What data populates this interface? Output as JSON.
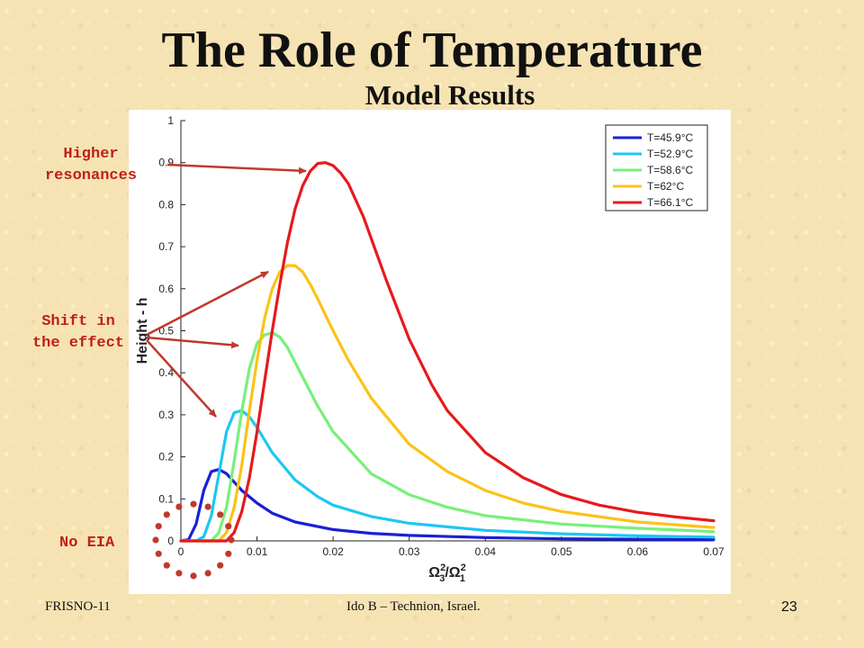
{
  "slide": {
    "title": "The Role of Temperature",
    "subtitle": "Model Results",
    "annotations": {
      "higher_line1": "Higher",
      "higher_line2": "resonances",
      "shift_line1": "Shift in",
      "shift_line2": "the effect",
      "no_eia": "No EIA"
    },
    "footer_left": "FRISNO-11",
    "footer_center": "Ido B – Technion, Israel.",
    "page_number": "23",
    "arrow_color": "#c0392b"
  },
  "chart_data": {
    "type": "line",
    "ylabel": "Height - h",
    "xlabel_base": "Ω",
    "xlim": [
      0,
      0.07
    ],
    "ylim": [
      0,
      1
    ],
    "xticks": [
      0,
      0.01,
      0.02,
      0.03,
      0.04,
      0.05,
      0.06,
      0.07
    ],
    "xtick_labels": [
      "0",
      "0.01",
      "0.02",
      "0.03",
      "0.04",
      "0.05",
      "0.06",
      "0.07"
    ],
    "yticks": [
      0,
      0.1,
      0.2,
      0.3,
      0.4,
      0.5,
      0.6,
      0.7,
      0.8,
      0.9,
      1
    ],
    "ytick_labels": [
      "0",
      "0.1",
      "0.2",
      "0.3",
      "0.4",
      "0.5",
      "0.6",
      "0.7",
      "0.8",
      "0.9",
      "1"
    ],
    "grid": false,
    "legend_position": "top-right",
    "series": [
      {
        "name": "T=45.9°C",
        "color": "#1a1fd6",
        "x": [
          0,
          0.001,
          0.002,
          0.003,
          0.004,
          0.005,
          0.006,
          0.007,
          0.008,
          0.01,
          0.012,
          0.015,
          0.02,
          0.025,
          0.03,
          0.04,
          0.05,
          0.06,
          0.07
        ],
        "y": [
          0,
          0.003,
          0.04,
          0.12,
          0.165,
          0.17,
          0.16,
          0.14,
          0.12,
          0.09,
          0.066,
          0.045,
          0.027,
          0.018,
          0.013,
          0.008,
          0.005,
          0.004,
          0.003
        ]
      },
      {
        "name": "T=52.9°C",
        "color": "#1ec7f0",
        "x": [
          0,
          0.002,
          0.003,
          0.004,
          0.005,
          0.006,
          0.007,
          0.008,
          0.009,
          0.01,
          0.012,
          0.015,
          0.018,
          0.02,
          0.025,
          0.03,
          0.04,
          0.05,
          0.06,
          0.07
        ],
        "y": [
          0,
          0.0,
          0.01,
          0.06,
          0.16,
          0.26,
          0.305,
          0.31,
          0.295,
          0.27,
          0.21,
          0.145,
          0.105,
          0.085,
          0.058,
          0.042,
          0.025,
          0.017,
          0.012,
          0.009
        ]
      },
      {
        "name": "T=58.6°C",
        "color": "#77f07a",
        "x": [
          0,
          0.004,
          0.005,
          0.006,
          0.007,
          0.008,
          0.009,
          0.01,
          0.011,
          0.012,
          0.013,
          0.014,
          0.016,
          0.018,
          0.02,
          0.025,
          0.03,
          0.035,
          0.04,
          0.05,
          0.06,
          0.07
        ],
        "y": [
          0,
          0.0,
          0.02,
          0.08,
          0.19,
          0.31,
          0.41,
          0.47,
          0.49,
          0.495,
          0.485,
          0.46,
          0.39,
          0.32,
          0.26,
          0.16,
          0.11,
          0.08,
          0.06,
          0.04,
          0.03,
          0.022
        ]
      },
      {
        "name": "T=62°C",
        "color": "#fbc318",
        "x": [
          0,
          0.005,
          0.006,
          0.007,
          0.008,
          0.009,
          0.01,
          0.011,
          0.012,
          0.013,
          0.014,
          0.015,
          0.016,
          0.017,
          0.018,
          0.02,
          0.022,
          0.025,
          0.03,
          0.035,
          0.04,
          0.045,
          0.05,
          0.06,
          0.07
        ],
        "y": [
          0,
          0.0,
          0.02,
          0.08,
          0.18,
          0.31,
          0.43,
          0.53,
          0.6,
          0.64,
          0.655,
          0.655,
          0.64,
          0.61,
          0.575,
          0.5,
          0.43,
          0.34,
          0.23,
          0.165,
          0.12,
          0.09,
          0.07,
          0.045,
          0.032
        ]
      },
      {
        "name": "T=66.1°C",
        "color": "#e8191c",
        "x": [
          0,
          0.006,
          0.007,
          0.008,
          0.009,
          0.01,
          0.011,
          0.012,
          0.013,
          0.014,
          0.015,
          0.016,
          0.017,
          0.018,
          0.019,
          0.02,
          0.021,
          0.022,
          0.023,
          0.024,
          0.025,
          0.027,
          0.03,
          0.033,
          0.035,
          0.04,
          0.045,
          0.05,
          0.055,
          0.06,
          0.065,
          0.07
        ],
        "y": [
          0,
          0.0,
          0.02,
          0.07,
          0.15,
          0.26,
          0.38,
          0.5,
          0.61,
          0.71,
          0.79,
          0.845,
          0.88,
          0.898,
          0.9,
          0.893,
          0.875,
          0.85,
          0.81,
          0.77,
          0.72,
          0.62,
          0.48,
          0.37,
          0.31,
          0.21,
          0.15,
          0.11,
          0.085,
          0.068,
          0.057,
          0.048
        ]
      }
    ]
  }
}
